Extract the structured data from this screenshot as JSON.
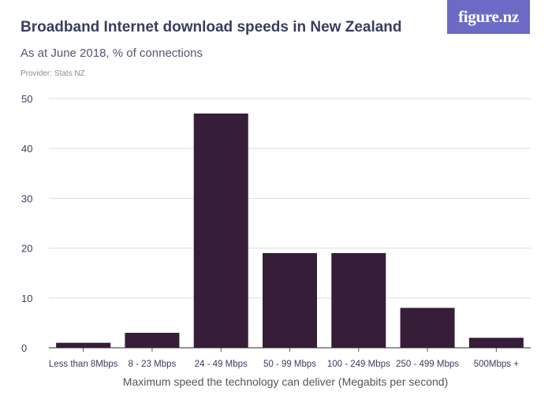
{
  "header": {
    "title": "Broadband Internet download speeds in New Zealand",
    "subtitle": "As at June 2018, % of connections",
    "provider": "Provider: Stats NZ",
    "logo": "figure.nz"
  },
  "colors": {
    "bar": "#361d38",
    "grid": "#dddddd",
    "text": "#3b3d5e",
    "axis": "#555555"
  },
  "chart_data": {
    "type": "bar",
    "title": "Broadband Internet download speeds in New Zealand",
    "subtitle": "As at June 2018, % of connections",
    "xlabel": "Maximum speed the technology can deliver (Megabits per second)",
    "ylabel": "",
    "ylim": [
      0,
      50
    ],
    "yticks": [
      0,
      10,
      20,
      30,
      40,
      50
    ],
    "grid": true,
    "categories": [
      "Less than 8Mbps",
      "8 - 23 Mbps",
      "24 - 49 Mbps",
      "50 - 99 Mbps",
      "100 - 249 Mbps",
      "250 - 499 Mbps",
      "500Mbps +"
    ],
    "values": [
      1,
      3,
      47,
      19,
      19,
      8,
      2
    ]
  }
}
